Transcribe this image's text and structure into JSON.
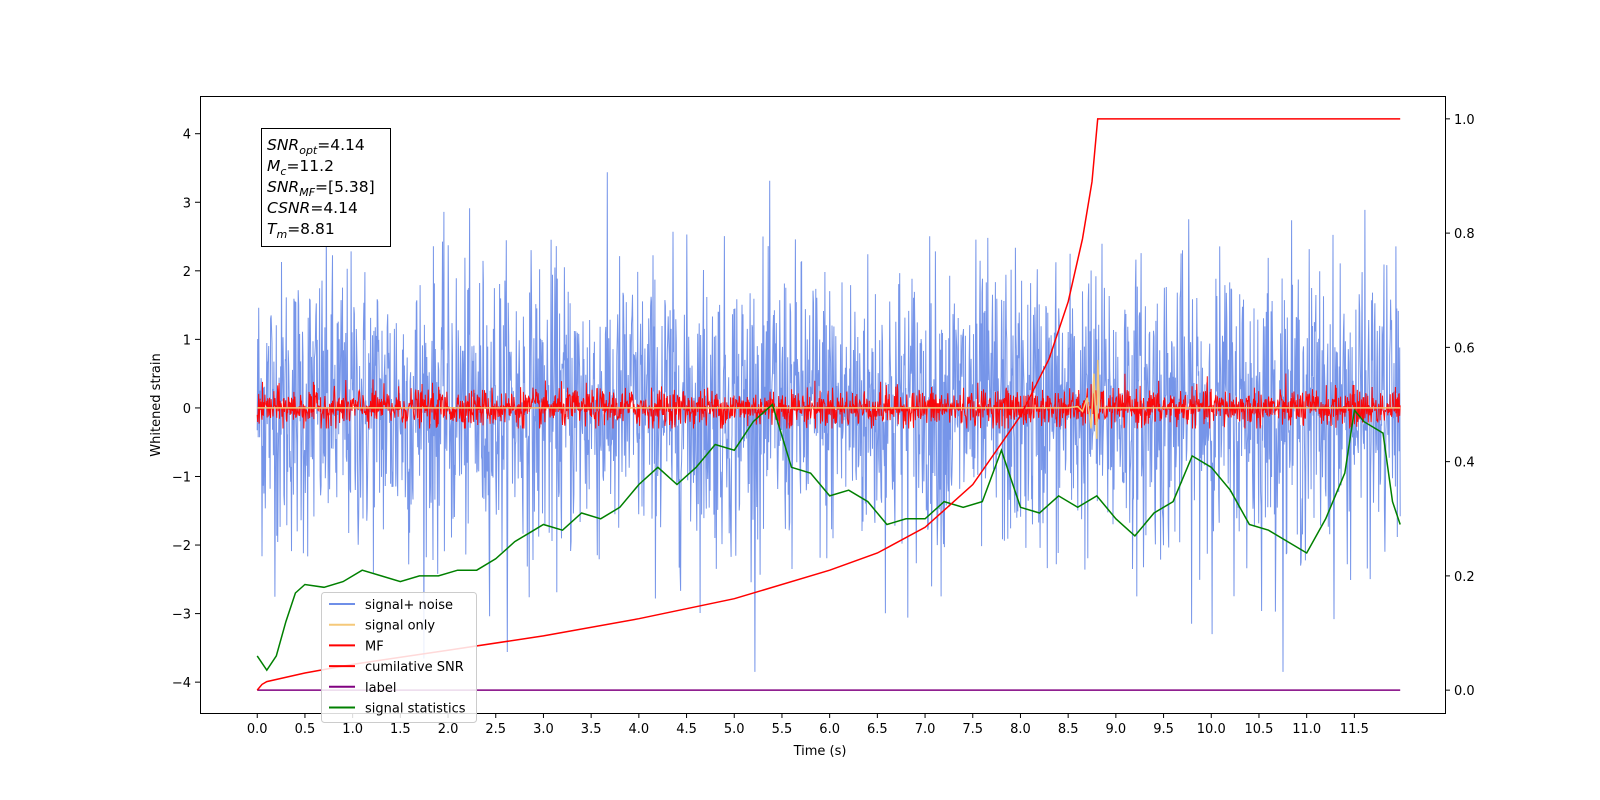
{
  "chart_data": {
    "type": "line",
    "xlabel": "Time (s)",
    "ylabel_left": "Whitened strain",
    "ylabel_right": "",
    "xlim": [
      -0.6,
      12.45
    ],
    "ylim_left": [
      -4.45,
      4.55
    ],
    "ylim_right": [
      -0.04,
      1.04
    ],
    "x_ticks": [
      0.0,
      0.5,
      1.0,
      1.5,
      2.0,
      2.5,
      3.0,
      3.5,
      4.0,
      4.5,
      5.0,
      5.5,
      6.0,
      6.5,
      7.0,
      7.5,
      8.0,
      8.5,
      9.0,
      9.5,
      10.0,
      10.5,
      11.0,
      11.5
    ],
    "x_tick_labels": [
      "0.0",
      "0.5",
      "1.0",
      "1.5",
      "2.0",
      "2.5",
      "3.0",
      "3.5",
      "4.0",
      "4.5",
      "5.0",
      "5.5",
      "6.0",
      "6.5",
      "7.0",
      "7.5",
      "8.0",
      "8.5",
      "9.0",
      "9.5",
      "10.0",
      "10.5",
      "11.0",
      "11.5"
    ],
    "y_ticks_left": [
      -4,
      -3,
      -2,
      -1,
      0,
      1,
      2,
      3,
      4
    ],
    "y_tick_labels_left": [
      "−4",
      "−3",
      "−2",
      "−1",
      "0",
      "1",
      "2",
      "3",
      "4"
    ],
    "y_ticks_right": [
      0.0,
      0.2,
      0.4,
      0.6,
      0.8,
      1.0
    ],
    "y_tick_labels_right": [
      "0.0",
      "0.2",
      "0.4",
      "0.6",
      "0.8",
      "1.0"
    ],
    "grid": false,
    "legend_position": "lower-left",
    "info_box": {
      "lines": [
        {
          "main": "SNR",
          "sub": "opt",
          "value": "=4.14"
        },
        {
          "main": "M",
          "sub": "c",
          "value": "=11.2"
        },
        {
          "main": "SNR",
          "sub": "MF",
          "value": "=[5.38]"
        },
        {
          "main": "CSNR",
          "sub": "",
          "value": "=4.14"
        },
        {
          "main": "T",
          "sub": "m",
          "value": "=8.81"
        }
      ]
    },
    "series": [
      {
        "name": "signal+ noise",
        "axis": "left",
        "color": "#6f8fe8",
        "kind": "noise-band",
        "x_range": [
          0.0,
          11.98
        ],
        "upper_envelope_typical": 2.0,
        "lower_envelope_typical": -1.9,
        "max": 4.15,
        "min": -3.85
      },
      {
        "name": "signal only",
        "axis": "left",
        "color": "#f5c97a",
        "x": [
          0.0,
          8.5,
          8.6,
          8.65,
          8.7,
          8.74,
          8.77,
          8.8,
          8.81,
          8.83,
          11.98
        ],
        "y": [
          0.0,
          0.0,
          0.02,
          -0.05,
          0.15,
          -0.3,
          0.5,
          -0.45,
          0.7,
          0.0,
          0.0
        ]
      },
      {
        "name": "MF",
        "axis": "left",
        "color": "#ff0000",
        "kind": "noise-band",
        "x_range": [
          0.0,
          11.98
        ],
        "upper_envelope_typical": 0.35,
        "lower_envelope_typical": -0.28,
        "max": 0.85,
        "min": -0.3
      },
      {
        "name": "cumilative SNR",
        "axis": "right",
        "color": "#ff0000",
        "x": [
          0.0,
          0.05,
          0.1,
          0.5,
          1.0,
          2.0,
          3.0,
          4.0,
          5.0,
          6.0,
          6.5,
          7.0,
          7.5,
          8.0,
          8.3,
          8.5,
          8.65,
          8.75,
          8.81,
          9.0,
          10.0,
          11.0,
          11.98
        ],
        "y": [
          0.0,
          0.01,
          0.015,
          0.03,
          0.045,
          0.07,
          0.095,
          0.125,
          0.16,
          0.21,
          0.24,
          0.285,
          0.36,
          0.48,
          0.58,
          0.68,
          0.79,
          0.89,
          1.0,
          1.0,
          1.0,
          1.0,
          1.0
        ]
      },
      {
        "name": "label",
        "axis": "right",
        "color": "#800080",
        "x": [
          0.0,
          11.98
        ],
        "y": [
          0.0,
          0.0
        ]
      },
      {
        "name": "signal statistics",
        "axis": "right",
        "color": "#008000",
        "x": [
          0.0,
          0.1,
          0.2,
          0.3,
          0.4,
          0.5,
          0.7,
          0.9,
          1.1,
          1.3,
          1.5,
          1.7,
          1.9,
          2.1,
          2.3,
          2.5,
          2.7,
          2.9,
          3.0,
          3.2,
          3.4,
          3.6,
          3.8,
          4.0,
          4.2,
          4.4,
          4.6,
          4.8,
          5.0,
          5.2,
          5.4,
          5.6,
          5.8,
          6.0,
          6.2,
          6.4,
          6.6,
          6.8,
          7.0,
          7.2,
          7.4,
          7.6,
          7.8,
          8.0,
          8.2,
          8.4,
          8.6,
          8.8,
          9.0,
          9.2,
          9.4,
          9.6,
          9.8,
          10.0,
          10.2,
          10.4,
          10.6,
          10.8,
          11.0,
          11.2,
          11.4,
          11.5,
          11.6,
          11.8,
          11.9,
          11.98
        ],
        "y": [
          0.06,
          0.035,
          0.06,
          0.12,
          0.17,
          0.185,
          0.18,
          0.19,
          0.21,
          0.2,
          0.19,
          0.2,
          0.2,
          0.21,
          0.21,
          0.23,
          0.26,
          0.28,
          0.29,
          0.28,
          0.31,
          0.3,
          0.32,
          0.36,
          0.39,
          0.36,
          0.39,
          0.43,
          0.42,
          0.47,
          0.5,
          0.39,
          0.38,
          0.34,
          0.35,
          0.33,
          0.29,
          0.3,
          0.3,
          0.33,
          0.32,
          0.33,
          0.42,
          0.32,
          0.31,
          0.34,
          0.32,
          0.34,
          0.3,
          0.27,
          0.31,
          0.33,
          0.41,
          0.39,
          0.35,
          0.29,
          0.28,
          0.26,
          0.24,
          0.3,
          0.38,
          0.49,
          0.47,
          0.45,
          0.33,
          0.29
        ]
      }
    ],
    "legend": [
      "signal+ noise",
      "signal only",
      "MF",
      "cumilative SNR",
      "label",
      "signal statistics"
    ]
  }
}
